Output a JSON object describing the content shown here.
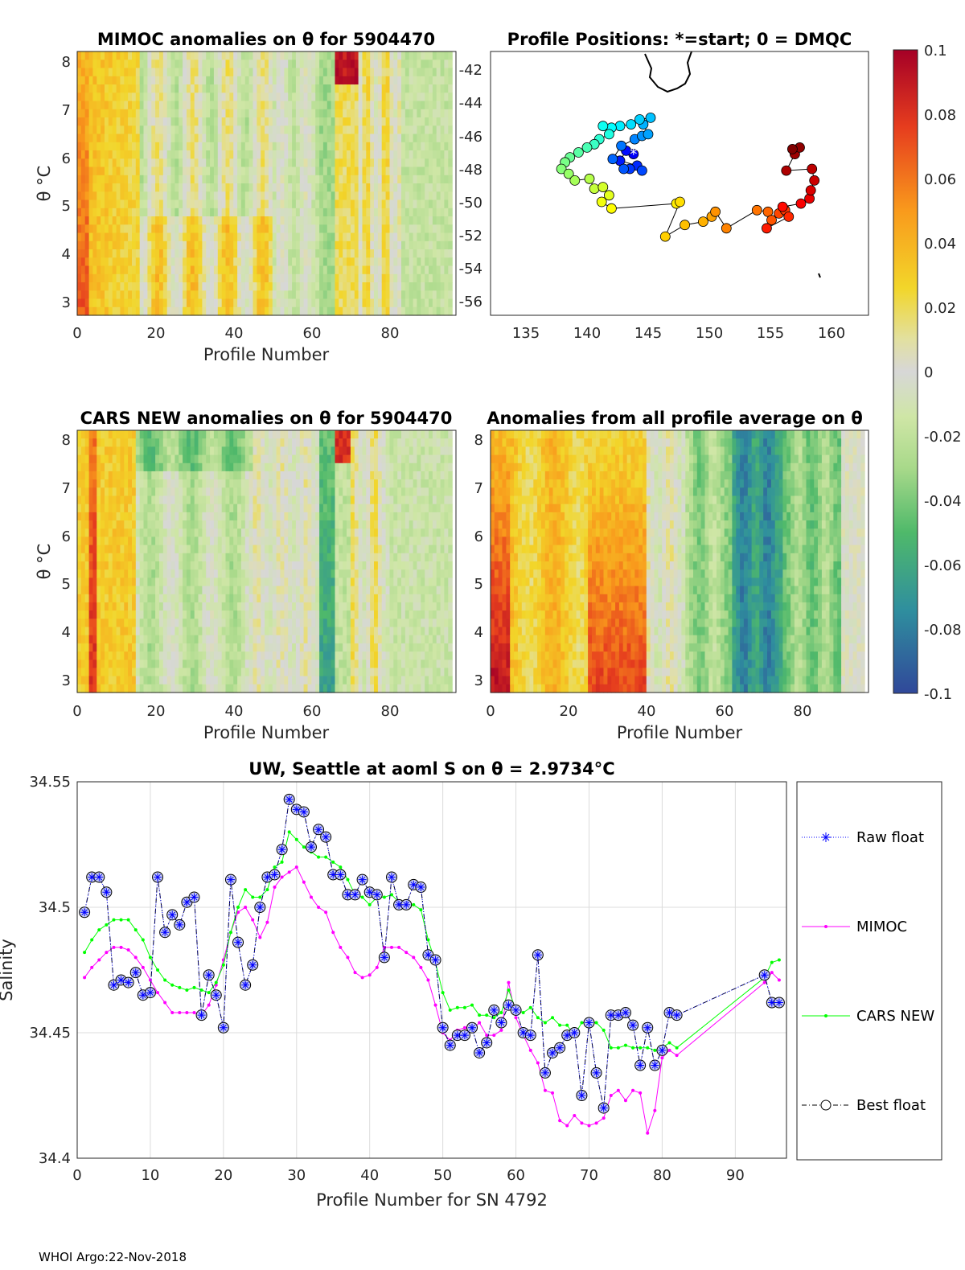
{
  "footer": "WHOI Argo:22-Nov-2018",
  "colorbar": {
    "ticks": [
      "0.1",
      "0.08",
      "0.06",
      "0.04",
      "0.02",
      "0",
      "-0.02",
      "-0.04",
      "-0.06",
      "-0.08",
      "-0.1"
    ],
    "range": [
      -0.1,
      0.1
    ]
  },
  "panels": {
    "mimoc": {
      "title": "MIMOC anomalies on θ  for 5904470",
      "ylabel": "θ °C",
      "xlabel": "Profile Number",
      "xticks": [
        "0",
        "20",
        "40",
        "60",
        "80"
      ],
      "yticks": [
        "8",
        "7",
        "6",
        "5",
        "4",
        "3"
      ]
    },
    "map": {
      "title": "Profile Positions: *=start; 0 = DMQC",
      "xticks": [
        "135",
        "140",
        "145",
        "150",
        "155",
        "160"
      ],
      "yticks": [
        "-42",
        "-44",
        "-46",
        "-48",
        "-50",
        "-52",
        "-54",
        "-56"
      ]
    },
    "cars": {
      "title": "CARS NEW anomalies on θ for 5904470",
      "ylabel": "θ °C",
      "xlabel": "Profile Number",
      "xticks": [
        "0",
        "20",
        "40",
        "60",
        "80"
      ],
      "yticks": [
        "8",
        "7",
        "6",
        "5",
        "4",
        "3"
      ]
    },
    "avg": {
      "title": "Anomalies from all profile average on θ",
      "xlabel": "Profile Number",
      "xticks": [
        "0",
        "20",
        "40",
        "60",
        "80"
      ],
      "yticks": [
        "8",
        "7",
        "6",
        "5",
        "4",
        "3"
      ]
    }
  },
  "chart_data": {
    "type": "line",
    "title": "UW, Seattle at aoml S on θ = 2.9734°C",
    "xlabel": "Profile Number for SN 4792",
    "ylabel": "Salinity",
    "xlim": [
      0,
      97
    ],
    "ylim": [
      34.4,
      34.55
    ],
    "xticks": [
      "0",
      "10",
      "20",
      "30",
      "40",
      "50",
      "60",
      "70",
      "80",
      "90"
    ],
    "yticks": [
      "34.55",
      "34.5",
      "34.45",
      "34.4"
    ],
    "x": [
      1,
      2,
      3,
      4,
      5,
      6,
      7,
      8,
      9,
      10,
      11,
      12,
      13,
      14,
      15,
      16,
      17,
      18,
      19,
      20,
      21,
      22,
      23,
      24,
      25,
      26,
      27,
      28,
      29,
      30,
      31,
      32,
      33,
      34,
      35,
      36,
      37,
      38,
      39,
      40,
      41,
      42,
      43,
      44,
      45,
      46,
      47,
      48,
      49,
      50,
      51,
      52,
      53,
      54,
      55,
      56,
      57,
      58,
      59,
      60,
      61,
      62,
      63,
      64,
      65,
      66,
      67,
      68,
      69,
      70,
      71,
      72,
      73,
      74,
      75,
      76,
      77,
      78,
      79,
      80,
      81,
      82,
      94,
      95,
      96
    ],
    "series": [
      {
        "name": "Raw float",
        "color": "#0000ff",
        "marker": "asterisk",
        "values": [
          34.498,
          34.512,
          34.512,
          34.506,
          34.469,
          34.471,
          34.47,
          34.474,
          34.465,
          34.466,
          34.512,
          34.49,
          34.497,
          34.493,
          34.502,
          34.504,
          34.457,
          34.473,
          34.465,
          34.452,
          34.511,
          34.486,
          34.469,
          34.477,
          34.5,
          34.512,
          34.513,
          34.523,
          34.543,
          34.539,
          34.538,
          34.524,
          34.531,
          34.528,
          34.513,
          34.513,
          34.505,
          34.505,
          34.511,
          34.506,
          34.505,
          34.48,
          34.512,
          34.501,
          34.501,
          34.509,
          34.508,
          34.481,
          34.479,
          34.452,
          34.445,
          34.449,
          34.449,
          34.452,
          34.442,
          34.446,
          34.459,
          34.454,
          34.461,
          34.459,
          34.45,
          34.449,
          34.481,
          34.434,
          34.442,
          34.444,
          34.449,
          34.45,
          34.425,
          34.454,
          34.434,
          34.42,
          34.457,
          34.457,
          34.458,
          34.453,
          34.437,
          34.452,
          34.437,
          34.443,
          34.458,
          34.457,
          34.473,
          34.462,
          34.462
        ]
      },
      {
        "name": "MIMOC",
        "color": "#ff00ff",
        "marker": "dot",
        "values": [
          34.472,
          34.476,
          34.479,
          34.482,
          34.484,
          34.484,
          34.483,
          34.48,
          34.476,
          34.471,
          34.466,
          34.462,
          34.458,
          34.458,
          34.458,
          34.458,
          34.457,
          34.461,
          34.469,
          34.479,
          34.49,
          34.498,
          34.5,
          34.495,
          34.488,
          34.494,
          34.508,
          34.512,
          34.514,
          34.516,
          34.51,
          34.504,
          34.5,
          34.498,
          34.49,
          34.484,
          34.48,
          34.474,
          34.472,
          34.473,
          34.476,
          34.484,
          34.484,
          34.484,
          34.482,
          34.48,
          34.476,
          34.471,
          34.461,
          34.45,
          34.447,
          34.451,
          34.452,
          34.451,
          34.454,
          34.449,
          34.449,
          34.451,
          34.47,
          34.456,
          34.449,
          34.443,
          34.438,
          34.427,
          34.426,
          34.415,
          34.413,
          34.417,
          34.414,
          34.413,
          34.414,
          34.416,
          34.425,
          34.427,
          34.423,
          34.427,
          34.426,
          34.41,
          34.419,
          34.44,
          34.443,
          34.441,
          34.47,
          34.474,
          34.471
        ]
      },
      {
        "name": "CARS NEW",
        "color": "#00ff00",
        "marker": "dot",
        "values": [
          34.482,
          34.487,
          34.491,
          34.493,
          34.495,
          34.495,
          34.495,
          34.491,
          34.487,
          34.48,
          34.475,
          34.471,
          34.469,
          34.468,
          34.467,
          34.468,
          34.467,
          34.466,
          34.47,
          34.477,
          34.49,
          34.5,
          34.507,
          34.504,
          34.504,
          34.507,
          34.516,
          34.518,
          34.53,
          34.527,
          34.524,
          34.522,
          34.52,
          34.52,
          34.518,
          34.516,
          34.511,
          34.505,
          34.504,
          34.501,
          34.504,
          34.504,
          34.505,
          34.502,
          34.5,
          34.501,
          34.499,
          34.487,
          34.478,
          34.466,
          34.459,
          34.46,
          34.46,
          34.461,
          34.457,
          34.457,
          34.456,
          34.458,
          34.467,
          34.459,
          34.458,
          34.46,
          34.456,
          34.454,
          34.456,
          34.453,
          34.453,
          34.449,
          34.454,
          34.454,
          34.454,
          34.451,
          34.444,
          34.444,
          34.445,
          34.444,
          34.444,
          34.444,
          34.443,
          34.444,
          34.446,
          34.444,
          34.472,
          34.478,
          34.479
        ]
      },
      {
        "name": "Best float",
        "color": "#000000",
        "marker": "circle",
        "values": [
          34.498,
          34.512,
          34.512,
          34.506,
          34.469,
          34.471,
          34.47,
          34.474,
          34.465,
          34.466,
          34.512,
          34.49,
          34.497,
          34.493,
          34.502,
          34.504,
          34.457,
          34.473,
          34.465,
          34.452,
          34.511,
          34.486,
          34.469,
          34.477,
          34.5,
          34.512,
          34.513,
          34.523,
          34.543,
          34.539,
          34.538,
          34.524,
          34.531,
          34.528,
          34.513,
          34.513,
          34.505,
          34.505,
          34.511,
          34.506,
          34.505,
          34.48,
          34.512,
          34.501,
          34.501,
          34.509,
          34.508,
          34.481,
          34.479,
          34.452,
          34.445,
          34.449,
          34.449,
          34.452,
          34.442,
          34.446,
          34.459,
          34.454,
          34.461,
          34.459,
          34.45,
          34.449,
          34.481,
          34.434,
          34.442,
          34.444,
          34.449,
          34.45,
          34.425,
          34.454,
          34.434,
          34.42,
          34.457,
          34.457,
          34.458,
          34.453,
          34.437,
          34.452,
          34.437,
          34.443,
          34.458,
          34.457,
          34.473,
          34.462,
          34.462
        ]
      }
    ]
  }
}
